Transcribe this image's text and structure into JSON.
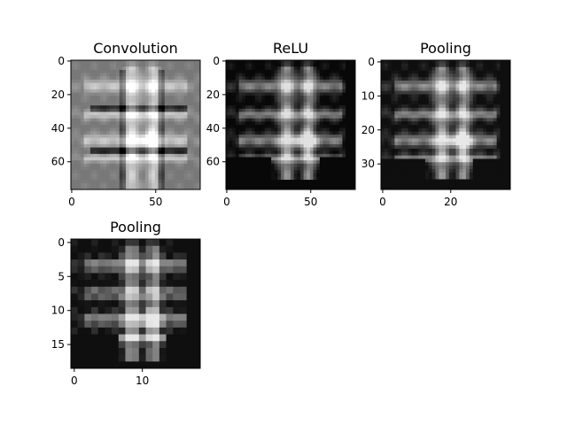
{
  "chart_data": [
    {
      "type": "heatmap",
      "title": "Convolution",
      "colormap": "gray",
      "background": "#9c9c9c",
      "size": [
        77,
        77
      ],
      "xlim": [
        -0.5,
        76.5
      ],
      "ylim": [
        76.5,
        -0.5
      ],
      "xticks": [
        0,
        50
      ],
      "yticks": [
        0,
        20,
        40,
        60
      ]
    },
    {
      "type": "heatmap",
      "title": "ReLU",
      "colormap": "gray",
      "background": "#0a0a0a",
      "size": [
        77,
        77
      ],
      "xlim": [
        -0.5,
        76.5
      ],
      "ylim": [
        76.5,
        -0.5
      ],
      "xticks": [
        0,
        50
      ],
      "yticks": [
        0,
        20,
        40,
        60
      ]
    },
    {
      "type": "heatmap",
      "title": "Pooling",
      "colormap": "gray",
      "background": "#111111",
      "size": [
        38,
        38
      ],
      "xlim": [
        -0.5,
        37.5
      ],
      "ylim": [
        37.5,
        -0.5
      ],
      "xticks": [
        0,
        20
      ],
      "yticks": [
        0,
        10,
        20,
        30
      ]
    },
    {
      "type": "heatmap",
      "title": "Pooling",
      "colormap": "gray",
      "background": "#141414",
      "size": [
        19,
        19
      ],
      "xlim": [
        -0.5,
        18.5
      ],
      "ylim": [
        18.5,
        -0.5
      ],
      "xticks": [
        0,
        10
      ],
      "yticks": [
        0,
        5,
        10,
        15
      ]
    }
  ]
}
